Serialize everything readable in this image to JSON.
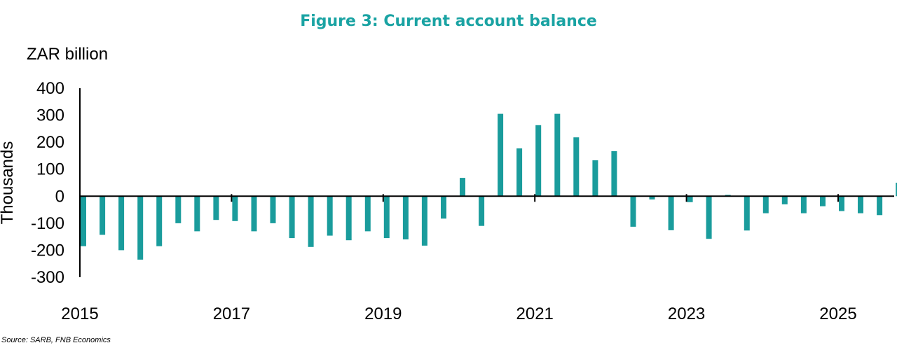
{
  "colors": {
    "bar": "#1a9c9c",
    "title": "#1aa3a3",
    "axis": "#000000"
  },
  "chart_data": {
    "type": "bar",
    "title": "Figure 3: Current account balance",
    "units": "ZAR billion",
    "ylabel": "Thousands",
    "xlabel": "",
    "source": "Source: SARB, FNB Economics",
    "ylim": [
      -300,
      400
    ],
    "y_ticks": [
      400,
      300,
      200,
      100,
      0,
      -100,
      -200,
      -300
    ],
    "y_tick_labels": [
      "400",
      "300",
      "200",
      "100",
      "0",
      "-100",
      "-200",
      "-300"
    ],
    "x_start": 2015.0,
    "x_step": 0.25,
    "x_tick_labels": [
      {
        "year": 2015,
        "label": "2015"
      },
      {
        "year": 2017,
        "label": "2017"
      },
      {
        "year": 2019,
        "label": "2019"
      },
      {
        "year": 2021,
        "label": "2021"
      },
      {
        "year": 2023,
        "label": "2023"
      },
      {
        "year": 2025,
        "label": "2025"
      }
    ],
    "grid": false,
    "legend": "none",
    "values": [
      -185,
      -143,
      -200,
      -235,
      -185,
      -100,
      -130,
      -88,
      -92,
      -130,
      -100,
      -155,
      -188,
      -146,
      -163,
      -130,
      -155,
      -160,
      -183,
      -83,
      68,
      -110,
      305,
      177,
      263,
      305,
      218,
      133,
      167,
      -113,
      -12,
      -126,
      -22,
      -158,
      5,
      -127,
      -63,
      -30,
      -63,
      -37,
      -55,
      -63,
      -70,
      50
    ]
  }
}
